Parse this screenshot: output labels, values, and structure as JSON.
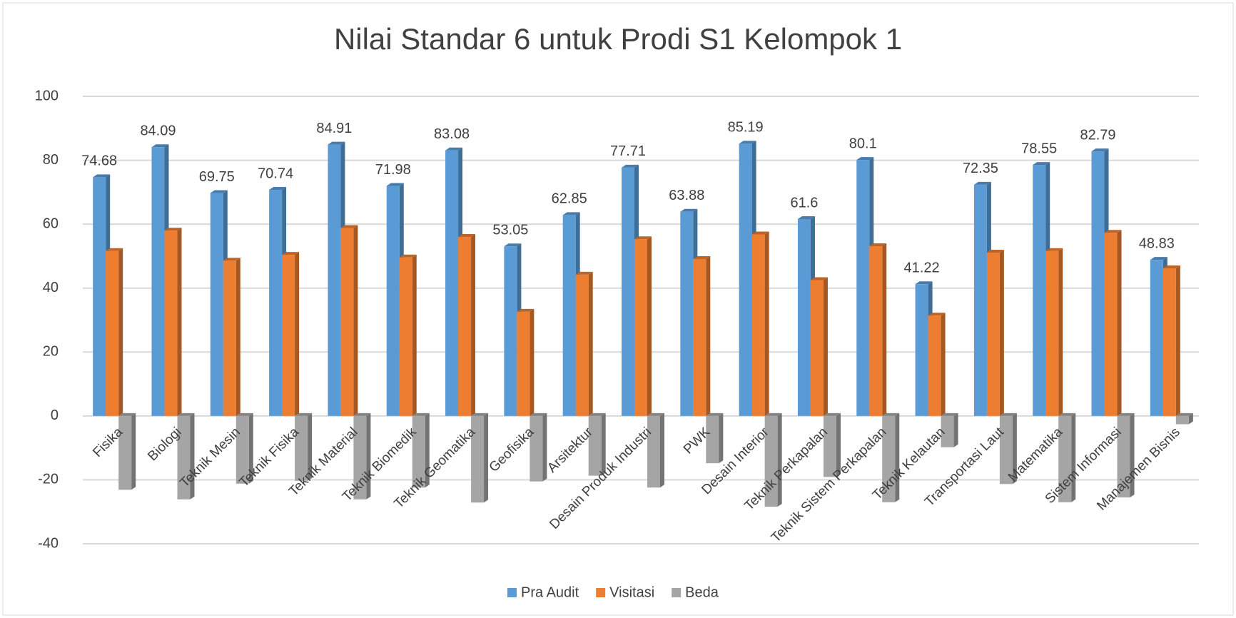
{
  "chart_data": {
    "type": "bar3d",
    "title": "Nilai Standar 6 untuk Prodi S1 Kelompok 1",
    "categories": [
      "Fisika",
      "Biologi",
      "Teknik Mesin",
      "Teknik Fisika",
      "Teknik Material",
      "Teknik Biomedik",
      "Teknik Geomatika",
      "Geofisika",
      "Arsitektur",
      "Desain Produk Industri",
      "PWK",
      "Desain Interior",
      "Teknik Perkapalan",
      "Teknik Sistem Perkapalan",
      "Teknik Kelautan",
      "Transportasi Laut",
      "Matematika",
      "Sistem Informasi",
      "Manajemen Bisnis"
    ],
    "series": [
      {
        "name": "Pra Audit",
        "color": "#5b9bd5",
        "labels": true,
        "values": [
          74.68,
          84.09,
          69.75,
          70.74,
          84.91,
          71.98,
          83.08,
          53.05,
          62.85,
          77.71,
          63.88,
          85.19,
          61.6,
          80.1,
          41.22,
          72.35,
          78.55,
          82.79,
          48.83
        ]
      },
      {
        "name": "Visitasi",
        "color": "#ed7d31",
        "labels": false,
        "values": [
          51.6,
          58.0,
          48.6,
          50.4,
          58.8,
          49.6,
          56.0,
          32.6,
          44.2,
          55.3,
          49.1,
          56.8,
          42.5,
          53.1,
          31.4,
          51.1,
          51.6,
          57.3,
          46.2
        ]
      },
      {
        "name": "Beda",
        "color": "#a5a5a5",
        "labels": false,
        "values": [
          -23.1,
          -26.1,
          -21.2,
          -20.3,
          -26.1,
          -22.4,
          -27.1,
          -20.5,
          -18.7,
          -22.4,
          -14.8,
          -28.4,
          -19.1,
          -27.0,
          -9.8,
          -21.3,
          -27.0,
          -25.5,
          -2.6
        ]
      }
    ],
    "ylim": [
      -40,
      100
    ],
    "yticks": [
      -40,
      -20,
      0,
      20,
      40,
      60,
      80,
      100
    ],
    "grid": true
  }
}
